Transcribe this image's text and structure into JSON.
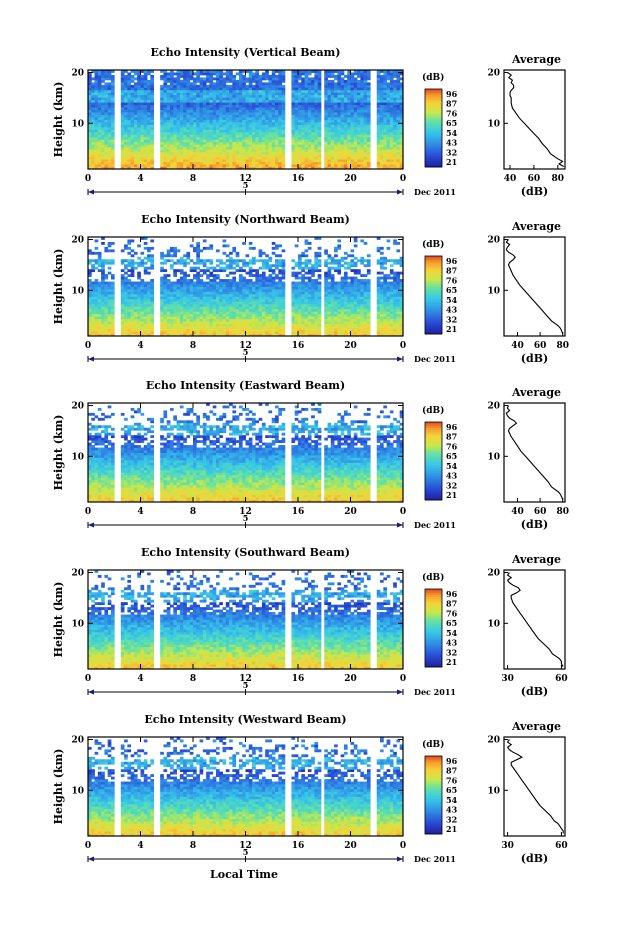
{
  "figure": {
    "x_axis_title": "Local Time",
    "date_label": "Dec 2011",
    "secondary_axis_label": "5",
    "colorbar_unit": "(dB)",
    "colorbar_ticks": [
      "96",
      "87",
      "76",
      "65",
      "54",
      "43",
      "32",
      "21"
    ],
    "avg_title": "Average",
    "avg_xlabel": "(dB)",
    "ylabel": "Height (km)"
  },
  "chart_data": [
    {
      "type": "heatmap",
      "title": "Echo Intensity (Vertical Beam)",
      "xlabel": "Local Time",
      "ylabel": "Height (km)",
      "x_ticks": [
        "0",
        "4",
        "8",
        "12",
        "16",
        "20",
        "0"
      ],
      "y_ticks": [
        "20",
        "10"
      ],
      "xlim": [
        0,
        24
      ],
      "ylim": [
        1,
        20.5
      ],
      "colorbar": {
        "unit": "(dB)",
        "ticks": [
          96,
          87,
          76,
          65,
          54,
          43,
          32,
          21
        ]
      },
      "data_gaps_hours": [
        [
          2.1,
          2.6
        ],
        [
          5.1,
          5.6
        ],
        [
          15.1,
          15.6
        ],
        [
          17.7,
          18.1
        ],
        [
          21.6,
          22.0
        ]
      ],
      "profile": {
        "title": "Average",
        "xlabel": "(dB)",
        "x_ticks": [
          "40",
          "60",
          "80"
        ],
        "xlim": [
          35,
          86
        ],
        "y_ticks": [
          "20",
          "10"
        ],
        "heights_km": [
          20,
          19.5,
          19,
          18.5,
          18,
          17.5,
          17,
          16.5,
          16,
          15.5,
          15,
          14,
          13,
          12,
          11,
          10,
          9,
          8,
          7,
          6,
          5,
          4,
          3.5,
          3,
          2.5,
          2,
          1.5
        ],
        "values_db": [
          38,
          41,
          39,
          42,
          41,
          43,
          43,
          41,
          40,
          40,
          41,
          41,
          42,
          45,
          48,
          52,
          56,
          60,
          64,
          67,
          71,
          74,
          77,
          80,
          84,
          81,
          85
        ]
      }
    },
    {
      "type": "heatmap",
      "title": "Echo Intensity (Northward Beam)",
      "xlabel": "Local Time",
      "ylabel": "Height (km)",
      "x_ticks": [
        "0",
        "4",
        "8",
        "12",
        "16",
        "20",
        "0"
      ],
      "y_ticks": [
        "20",
        "10"
      ],
      "xlim": [
        0,
        24
      ],
      "ylim": [
        1,
        20.5
      ],
      "colorbar": {
        "unit": "(dB)",
        "ticks": [
          96,
          87,
          76,
          65,
          54,
          43,
          32,
          21
        ]
      },
      "data_gaps_hours": [
        [
          2.1,
          2.6
        ],
        [
          5.1,
          5.6
        ],
        [
          15.1,
          15.6
        ],
        [
          17.7,
          18.1
        ],
        [
          21.6,
          22.0
        ]
      ],
      "profile": {
        "title": "Average",
        "xlabel": "(dB)",
        "x_ticks": [
          "40",
          "60",
          "80"
        ],
        "xlim": [
          28,
          82
        ],
        "y_ticks": [
          "20",
          "10"
        ],
        "heights_km": [
          20,
          19.5,
          19,
          18.5,
          18,
          17.5,
          17,
          16.5,
          16,
          15.5,
          15,
          14,
          13,
          12,
          11,
          10,
          9,
          8,
          7,
          6,
          5,
          4,
          3.5,
          3,
          2.5,
          2,
          1.5
        ],
        "values_db": [
          32,
          30,
          33,
          31,
          30,
          32,
          36,
          38,
          36,
          33,
          32,
          34,
          36,
          39,
          42,
          46,
          50,
          54,
          58,
          62,
          66,
          70,
          73,
          76,
          78,
          79,
          80
        ]
      }
    },
    {
      "type": "heatmap",
      "title": "Echo Intensity (Eastward Beam)",
      "xlabel": "Local Time",
      "ylabel": "Height (km)",
      "x_ticks": [
        "0",
        "4",
        "8",
        "12",
        "16",
        "20",
        "0"
      ],
      "y_ticks": [
        "20",
        "10"
      ],
      "xlim": [
        0,
        24
      ],
      "ylim": [
        1,
        20.5
      ],
      "colorbar": {
        "unit": "(dB)",
        "ticks": [
          96,
          87,
          76,
          65,
          54,
          43,
          32,
          21
        ]
      },
      "data_gaps_hours": [
        [
          2.1,
          2.6
        ],
        [
          5.1,
          5.6
        ],
        [
          15.1,
          15.6
        ],
        [
          17.7,
          18.1
        ],
        [
          21.6,
          22.0
        ]
      ],
      "profile": {
        "title": "Average",
        "xlabel": "(dB)",
        "x_ticks": [
          "40",
          "60",
          "80"
        ],
        "xlim": [
          28,
          82
        ],
        "y_ticks": [
          "20",
          "10"
        ],
        "heights_km": [
          20,
          19.5,
          19,
          18.5,
          18,
          17.5,
          17,
          16.5,
          16,
          15.5,
          15,
          14,
          13,
          12,
          11,
          10,
          9,
          8,
          7,
          6,
          5,
          4,
          3.5,
          3,
          2.5,
          2,
          1.5
        ],
        "values_db": [
          32,
          31,
          33,
          30,
          31,
          33,
          37,
          39,
          36,
          33,
          32,
          34,
          37,
          40,
          43,
          47,
          51,
          55,
          59,
          63,
          67,
          70,
          73,
          76,
          78,
          79,
          80
        ]
      }
    },
    {
      "type": "heatmap",
      "title": "Echo Intensity (Southward Beam)",
      "xlabel": "Local Time",
      "ylabel": "Height (km)",
      "x_ticks": [
        "0",
        "4",
        "8",
        "12",
        "16",
        "20",
        "0"
      ],
      "y_ticks": [
        "20",
        "10"
      ],
      "xlim": [
        0,
        24
      ],
      "ylim": [
        1,
        20.5
      ],
      "colorbar": {
        "unit": "(dB)",
        "ticks": [
          96,
          87,
          76,
          65,
          54,
          43,
          32,
          21
        ]
      },
      "data_gaps_hours": [
        [
          2.1,
          2.6
        ],
        [
          5.1,
          5.6
        ],
        [
          15.1,
          15.6
        ],
        [
          17.7,
          18.1
        ],
        [
          21.6,
          22.0
        ]
      ],
      "profile": {
        "title": "Average",
        "xlabel": "(dB)",
        "x_ticks": [
          "30",
          "60"
        ],
        "xlim": [
          28,
          62
        ],
        "y_ticks": [
          "20",
          "10"
        ],
        "heights_km": [
          20,
          19.5,
          19,
          18.5,
          18,
          17.5,
          17,
          16.5,
          16,
          15.5,
          15,
          14,
          13,
          12,
          11,
          10,
          9,
          8,
          7,
          6,
          5,
          4,
          3.5,
          3,
          2.5,
          2,
          1.5
        ],
        "values_db": [
          31,
          30,
          32,
          30,
          31,
          33,
          36,
          37,
          35,
          32,
          32,
          33,
          35,
          37,
          39,
          41,
          43,
          45,
          47,
          50,
          53,
          55,
          57,
          59,
          60,
          60,
          61
        ]
      }
    },
    {
      "type": "heatmap",
      "title": "Echo Intensity (Westward Beam)",
      "xlabel": "Local Time",
      "ylabel": "Height (km)",
      "x_ticks": [
        "0",
        "4",
        "8",
        "12",
        "16",
        "20",
        "0"
      ],
      "y_ticks": [
        "20",
        "10"
      ],
      "xlim": [
        0,
        24
      ],
      "ylim": [
        1,
        20.5
      ],
      "colorbar": {
        "unit": "(dB)",
        "ticks": [
          96,
          87,
          76,
          65,
          54,
          43,
          32,
          21
        ]
      },
      "data_gaps_hours": [
        [
          2.1,
          2.6
        ],
        [
          5.1,
          5.6
        ],
        [
          15.1,
          15.6
        ],
        [
          17.7,
          18.1
        ],
        [
          21.6,
          22.0
        ]
      ],
      "profile": {
        "title": "Average",
        "xlabel": "(dB)",
        "x_ticks": [
          "30",
          "60"
        ],
        "xlim": [
          28,
          62
        ],
        "y_ticks": [
          "20",
          "10"
        ],
        "heights_km": [
          20,
          19.5,
          19,
          18.5,
          18,
          17.5,
          17,
          16.5,
          16,
          15.5,
          15,
          14,
          13,
          12,
          11,
          10,
          9,
          8,
          7,
          6,
          5,
          4,
          3.5,
          3,
          2.5,
          2,
          1.5
        ],
        "values_db": [
          31,
          30,
          32,
          30,
          31,
          33,
          36,
          38,
          35,
          32,
          32,
          34,
          36,
          38,
          40,
          42,
          44,
          46,
          48,
          51,
          54,
          56,
          58,
          59,
          60,
          61,
          61
        ]
      }
    }
  ]
}
